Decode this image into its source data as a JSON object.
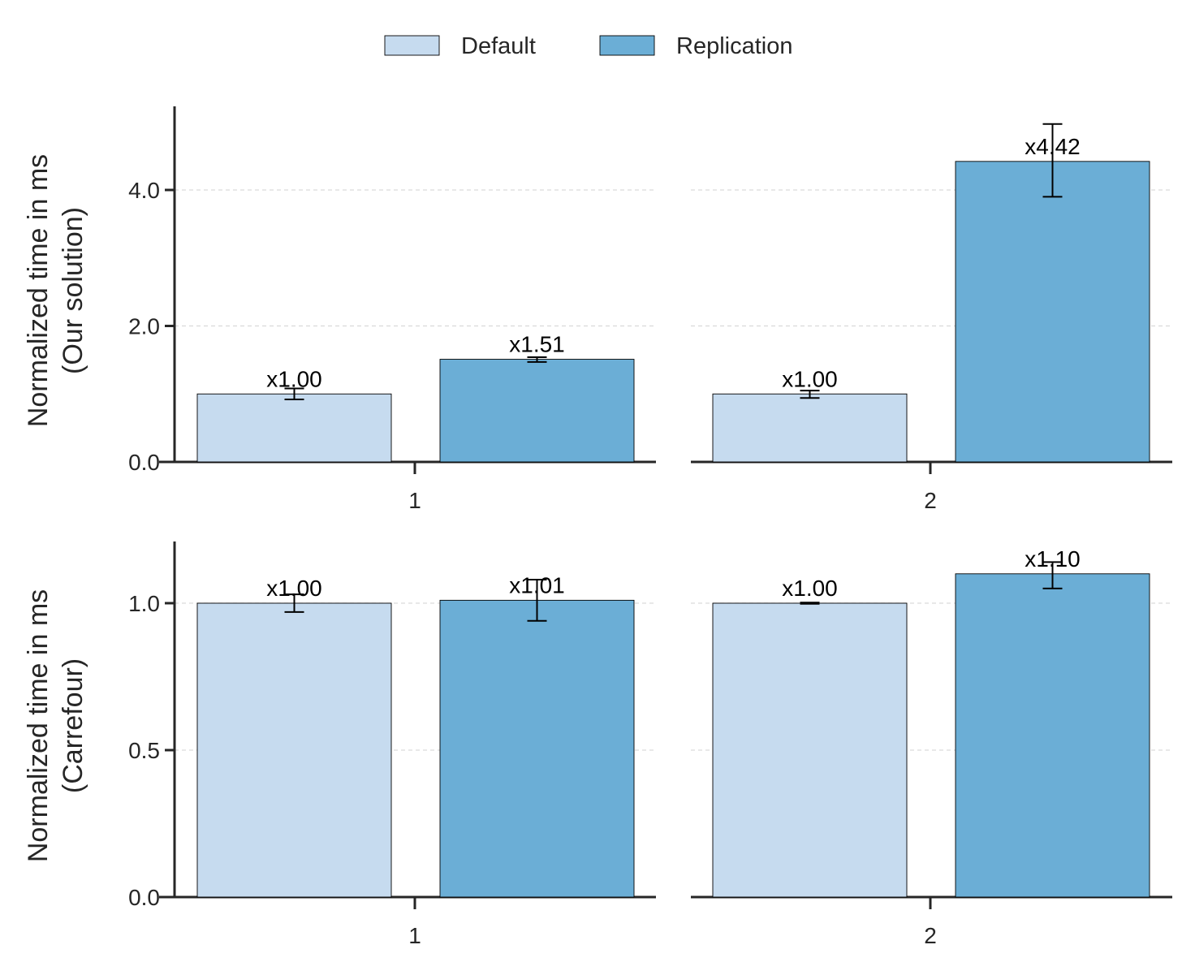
{
  "chart_data": {
    "type": "bar",
    "legend": {
      "placement": "top-center",
      "entries": [
        {
          "name": "Default",
          "color": "#c6dbef"
        },
        {
          "name": "Replication",
          "color": "#6baed6"
        }
      ]
    },
    "grid": "horizontal-dashed",
    "rows": [
      {
        "ylabel_lines": [
          "Normalized time in ms",
          "(Our solution)"
        ],
        "ylim": [
          0,
          5.2
        ],
        "yticks": [
          0.0,
          2.0,
          4.0
        ],
        "ytick_labels": [
          "0.0",
          "2.0",
          "4.0"
        ],
        "panels": [
          {
            "x_tick_label": "1",
            "series": [
              {
                "name": "Default",
                "value": 1.0,
                "err_low": 0.92,
                "err_high": 1.08,
                "label": "x1.00"
              },
              {
                "name": "Replication",
                "value": 1.51,
                "err_low": 1.47,
                "err_high": 1.54,
                "label": "x1.51"
              }
            ]
          },
          {
            "x_tick_label": "2",
            "series": [
              {
                "name": "Default",
                "value": 1.0,
                "err_low": 0.94,
                "err_high": 1.05,
                "label": "x1.00"
              },
              {
                "name": "Replication",
                "value": 4.42,
                "err_low": 3.9,
                "err_high": 4.97,
                "label": "x4.42"
              }
            ]
          }
        ]
      },
      {
        "ylabel_lines": [
          "Normalized time in ms",
          "(Carrefour)"
        ],
        "ylim": [
          0,
          1.2
        ],
        "yticks": [
          0.0,
          0.5,
          1.0
        ],
        "ytick_labels": [
          "0.0",
          "0.5",
          "1.0"
        ],
        "panels": [
          {
            "x_tick_label": "1",
            "series": [
              {
                "name": "Default",
                "value": 1.0,
                "err_low": 0.97,
                "err_high": 1.03,
                "label": "x1.00"
              },
              {
                "name": "Replication",
                "value": 1.01,
                "err_low": 0.94,
                "err_high": 1.08,
                "label": "x1.01"
              }
            ]
          },
          {
            "x_tick_label": "2",
            "series": [
              {
                "name": "Default",
                "value": 1.0,
                "err_low": 0.998,
                "err_high": 1.002,
                "label": "x1.00"
              },
              {
                "name": "Replication",
                "value": 1.1,
                "err_low": 1.05,
                "err_high": 1.14,
                "label": "x1.10"
              }
            ]
          }
        ]
      }
    ]
  }
}
